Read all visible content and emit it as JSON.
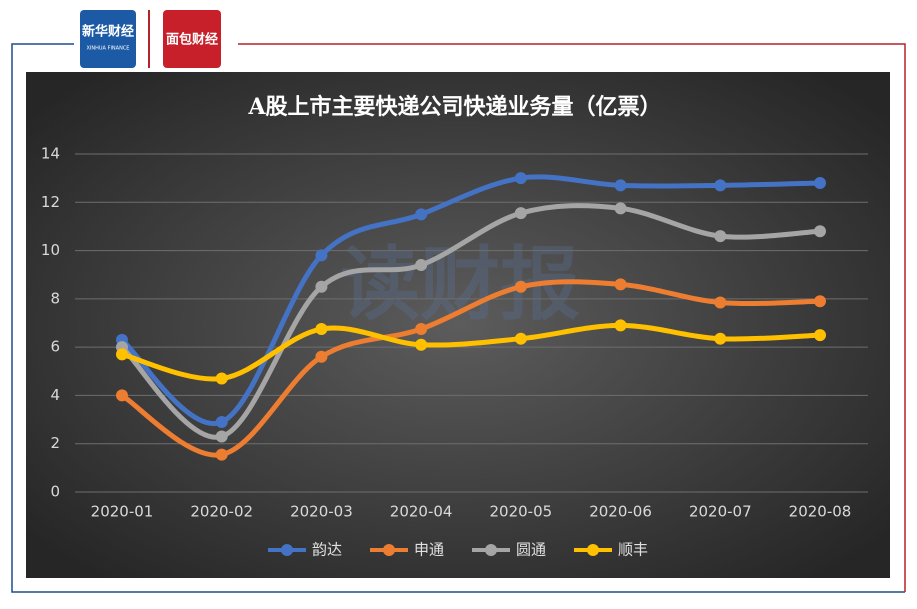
{
  "branding": {
    "left_logo": "新华财经",
    "left_logo_sub": "XINHUA FINANCE",
    "right_logo": "面包财经",
    "watermark": "读财报"
  },
  "chart_data": {
    "type": "line",
    "smooth": true,
    "title": "A股上市主要快递公司快递业务量（亿票）",
    "categories": [
      "2020-01",
      "2020-02",
      "2020-03",
      "2020-04",
      "2020-05",
      "2020-06",
      "2020-07",
      "2020-08"
    ],
    "series": [
      {
        "name": "韵达",
        "color": "#4472c4",
        "values": [
          6.3,
          2.9,
          9.8,
          11.5,
          13.0,
          12.7,
          12.7,
          12.8
        ]
      },
      {
        "name": "申通",
        "color": "#ed7d31",
        "values": [
          4.0,
          1.55,
          5.6,
          6.75,
          8.5,
          8.6,
          7.85,
          7.9
        ]
      },
      {
        "name": "圆通",
        "color": "#a5a5a5",
        "values": [
          6.0,
          2.3,
          8.5,
          9.4,
          11.55,
          11.75,
          10.6,
          10.8
        ]
      },
      {
        "name": "顺丰",
        "color": "#ffc000",
        "values": [
          5.7,
          4.7,
          6.75,
          6.1,
          6.35,
          6.9,
          6.35,
          6.5
        ]
      }
    ],
    "ylim": [
      0,
      14
    ],
    "yticks": [
      0,
      2,
      4,
      6,
      8,
      10,
      12,
      14
    ],
    "grid": true,
    "legend": "bottom"
  }
}
